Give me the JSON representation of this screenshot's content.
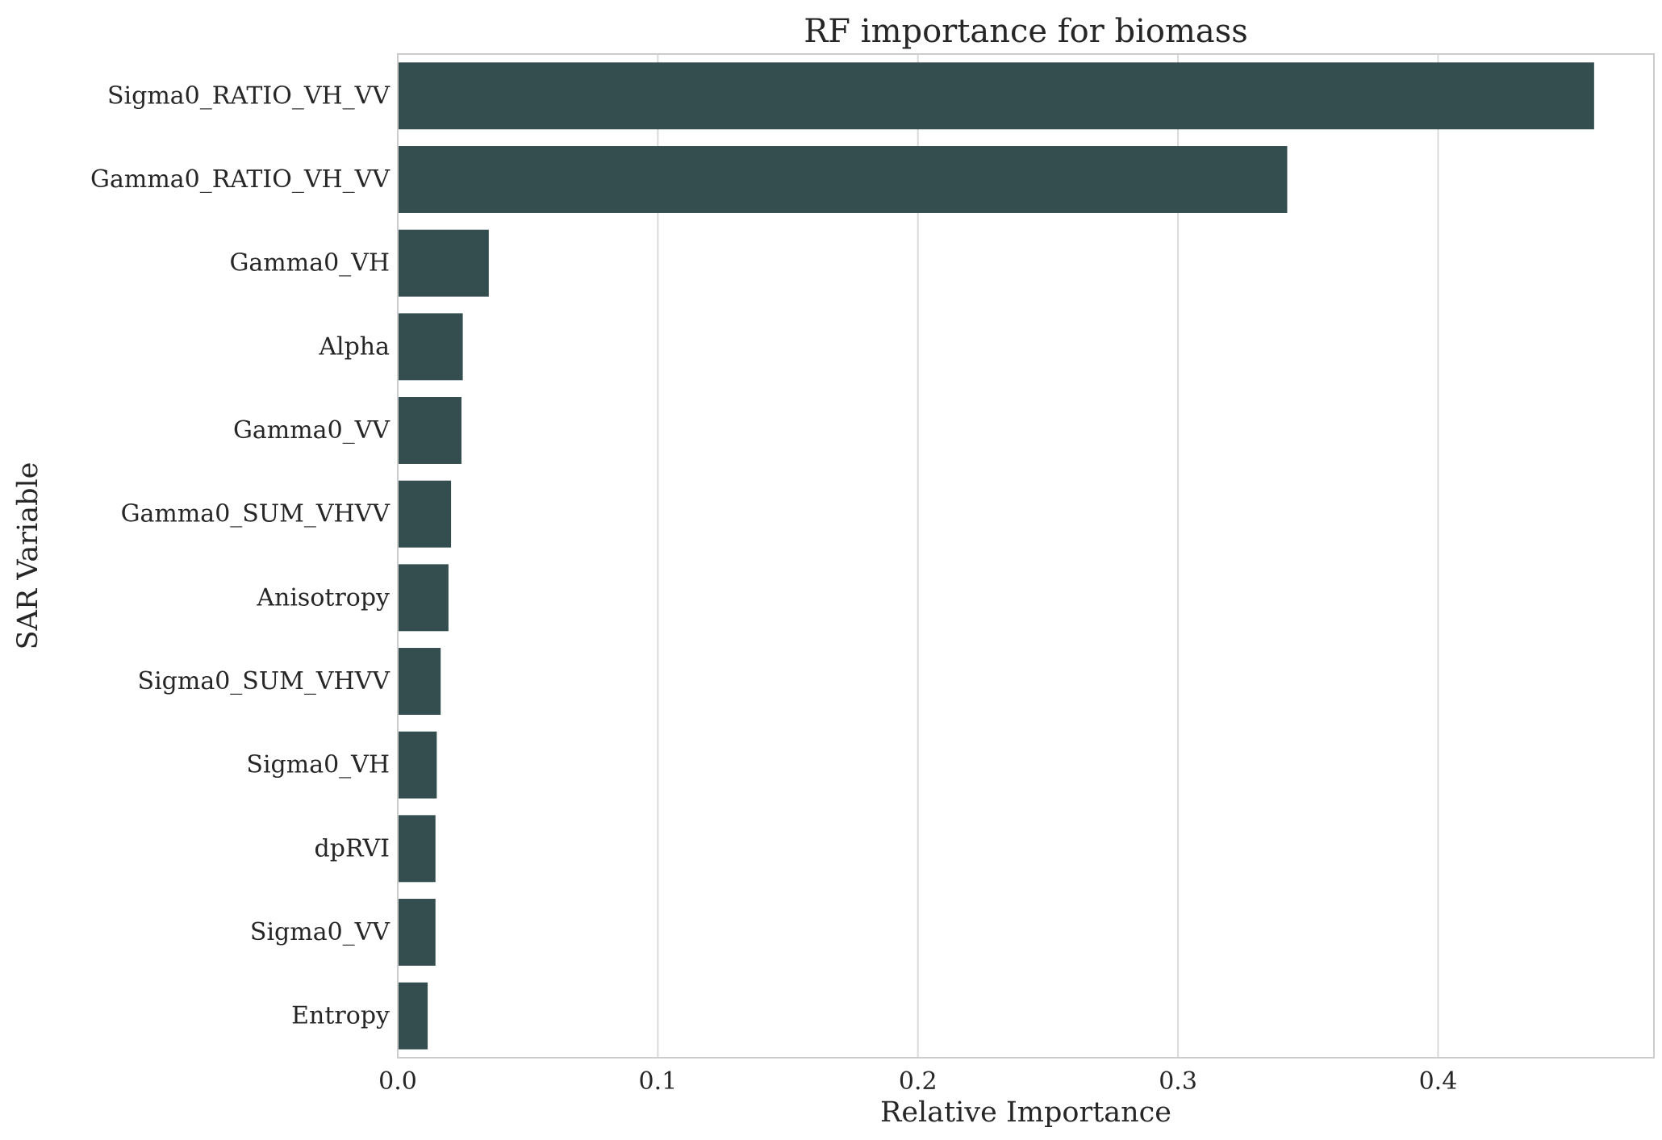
{
  "chart_data": {
    "type": "bar",
    "orientation": "horizontal",
    "title": "RF importance for biomass",
    "xlabel": "Relative Importance",
    "ylabel": "SAR Variable",
    "xlim": [
      0.0,
      0.483
    ],
    "xticks": [
      0.0,
      0.1,
      0.2,
      0.3,
      0.4
    ],
    "xtick_labels": [
      "0.0",
      "0.1",
      "0.2",
      "0.3",
      "0.4"
    ],
    "grid": true,
    "bar_color": "#344d4e",
    "categories": [
      "Sigma0_RATIO_VH_VV",
      "Gamma0_RATIO_VH_VV",
      "Gamma0_VH",
      "Alpha",
      "Gamma0_VV",
      "Gamma0_SUM_VHVV",
      "Anisotropy",
      "Sigma0_SUM_VHVV",
      "Sigma0_VH",
      "dpRVI",
      "Sigma0_VV",
      "Entropy"
    ],
    "values": [
      0.46,
      0.342,
      0.035,
      0.025,
      0.0245,
      0.0205,
      0.0195,
      0.0165,
      0.015,
      0.0145,
      0.0145,
      0.0115
    ]
  }
}
